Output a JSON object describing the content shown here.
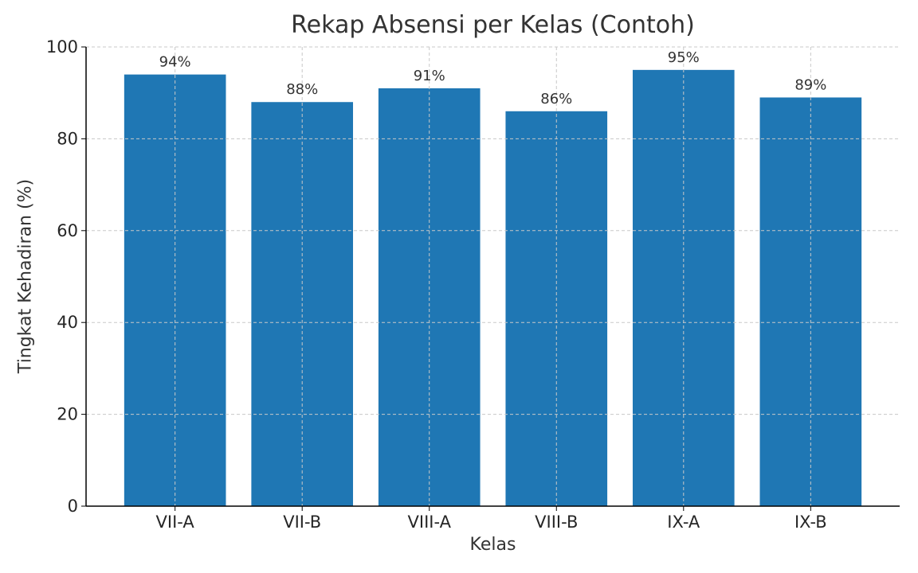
{
  "chart_data": {
    "type": "bar",
    "title": "Rekap Absensi per Kelas (Contoh)",
    "xlabel": "Kelas",
    "ylabel": "Tingkat Kehadiran (%)",
    "categories": [
      "VII-A",
      "VII-B",
      "VIII-A",
      "VIII-B",
      "IX-A",
      "IX-B"
    ],
    "values": [
      94,
      88,
      91,
      86,
      95,
      89
    ],
    "data_labels": [
      "94%",
      "88%",
      "91%",
      "86%",
      "95%",
      "89%"
    ],
    "ylim": [
      0,
      100
    ],
    "yticks": [
      0,
      20,
      40,
      60,
      80,
      100
    ],
    "ytick_labels": [
      "0",
      "20",
      "40",
      "60",
      "80",
      "100"
    ],
    "grid": true,
    "legend": "none",
    "colors": {
      "bar": "#1f77b4",
      "grid": "#c8c8c8",
      "axis": "#000000",
      "text": "#333333"
    }
  }
}
